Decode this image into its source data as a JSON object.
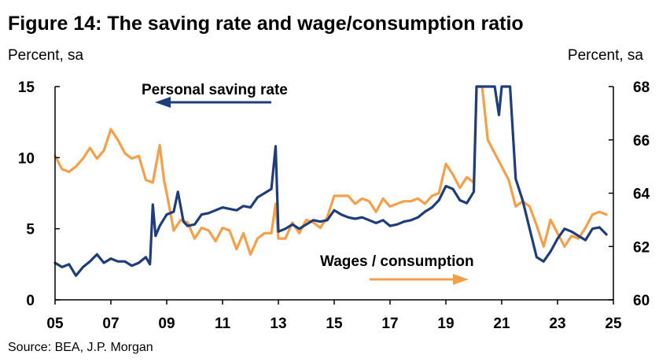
{
  "chart_data": {
    "type": "line",
    "title": "Figure 14: The saving rate and wage/consumption ratio",
    "left_unit": "Percent, sa",
    "right_unit": "Percent, sa",
    "source": "Source: BEA, J.P. Morgan",
    "x_range": [
      2005,
      2025
    ],
    "x_ticks": [
      "05",
      "07",
      "09",
      "11",
      "13",
      "15",
      "17",
      "19",
      "21",
      "23",
      "25"
    ],
    "x_tick_values": [
      2005,
      2007,
      2009,
      2011,
      2013,
      2015,
      2017,
      2019,
      2021,
      2023,
      2025
    ],
    "left_axis": {
      "range": [
        0,
        15
      ],
      "ticks": [
        "0",
        "5",
        "10",
        "15"
      ],
      "tick_values": [
        0,
        5,
        10,
        15
      ]
    },
    "right_axis": {
      "range": [
        60,
        68
      ],
      "ticks": [
        "60",
        "62",
        "64",
        "66",
        "68"
      ],
      "tick_values": [
        60,
        62,
        64,
        66,
        68
      ]
    },
    "annotations": {
      "saving": "Personal saving rate",
      "wages": "Wages / consumption"
    },
    "series": [
      {
        "name": "Personal saving rate",
        "axis": "left",
        "color": "#1f3d7a",
        "x": [
          2005.0,
          2005.25,
          2005.5,
          2005.75,
          2006.0,
          2006.25,
          2006.5,
          2006.75,
          2007.0,
          2007.25,
          2007.5,
          2007.75,
          2008.0,
          2008.25,
          2008.4,
          2008.5,
          2008.6,
          2008.75,
          2009.0,
          2009.25,
          2009.4,
          2009.6,
          2009.75,
          2010.0,
          2010.25,
          2010.5,
          2010.75,
          2011.0,
          2011.25,
          2011.5,
          2011.75,
          2012.0,
          2012.25,
          2012.5,
          2012.75,
          2012.9,
          2013.0,
          2013.25,
          2013.5,
          2013.75,
          2014.0,
          2014.25,
          2014.5,
          2014.75,
          2015.0,
          2015.25,
          2015.5,
          2015.75,
          2016.0,
          2016.25,
          2016.5,
          2016.75,
          2017.0,
          2017.25,
          2017.5,
          2017.75,
          2018.0,
          2018.25,
          2018.5,
          2018.75,
          2019.0,
          2019.25,
          2019.5,
          2019.75,
          2020.0,
          2020.1,
          2020.2,
          2020.3,
          2020.5,
          2020.75,
          2020.9,
          2021.0,
          2021.1,
          2021.2,
          2021.3,
          2021.5,
          2021.75,
          2022.0,
          2022.25,
          2022.5,
          2022.75,
          2023.0,
          2023.25,
          2023.5,
          2023.75,
          2024.0,
          2024.25,
          2024.5,
          2024.75
        ],
        "values": [
          2.6,
          2.3,
          2.5,
          1.7,
          2.3,
          2.7,
          3.2,
          2.6,
          2.9,
          2.7,
          2.7,
          2.4,
          2.6,
          3.0,
          2.5,
          6.7,
          4.5,
          5.2,
          6.0,
          6.2,
          7.6,
          5.5,
          5.2,
          5.3,
          6.0,
          6.1,
          6.3,
          6.5,
          6.4,
          6.3,
          6.6,
          6.5,
          7.2,
          7.5,
          7.8,
          10.8,
          4.8,
          5.0,
          5.3,
          5.0,
          5.3,
          5.6,
          5.5,
          5.6,
          6.3,
          6.0,
          5.8,
          5.7,
          5.8,
          5.6,
          5.4,
          5.6,
          5.2,
          5.3,
          5.5,
          5.6,
          5.8,
          6.2,
          6.5,
          7.0,
          8.0,
          7.8,
          7.0,
          6.8,
          7.6,
          15.0,
          15.0,
          15.0,
          15.0,
          15.0,
          13.0,
          15.0,
          15.0,
          15.0,
          15.0,
          8.5,
          7.0,
          5.0,
          3.0,
          2.7,
          3.4,
          4.3,
          5.0,
          4.8,
          4.5,
          4.2,
          5.0,
          5.1,
          4.6
        ]
      },
      {
        "name": "Wages / consumption",
        "axis": "right",
        "color": "#f4a04a",
        "x": [
          2005.0,
          2005.25,
          2005.5,
          2005.75,
          2006.0,
          2006.25,
          2006.5,
          2006.75,
          2007.0,
          2007.25,
          2007.5,
          2007.75,
          2008.0,
          2008.25,
          2008.5,
          2008.75,
          2008.9,
          2009.0,
          2009.25,
          2009.5,
          2009.75,
          2010.0,
          2010.25,
          2010.5,
          2010.75,
          2011.0,
          2011.25,
          2011.5,
          2011.75,
          2012.0,
          2012.25,
          2012.5,
          2012.75,
          2012.9,
          2013.0,
          2013.25,
          2013.5,
          2013.75,
          2014.0,
          2014.25,
          2014.5,
          2014.75,
          2015.0,
          2015.25,
          2015.5,
          2015.75,
          2016.0,
          2016.25,
          2016.5,
          2016.75,
          2017.0,
          2017.25,
          2017.5,
          2017.75,
          2018.0,
          2018.25,
          2018.5,
          2018.75,
          2019.0,
          2019.25,
          2019.5,
          2019.75,
          2020.0,
          2020.1,
          2020.2,
          2020.3,
          2020.5,
          2020.75,
          2021.0,
          2021.25,
          2021.5,
          2021.75,
          2022.0,
          2022.25,
          2022.5,
          2022.75,
          2023.0,
          2023.25,
          2023.5,
          2023.75,
          2024.0,
          2024.25,
          2024.5,
          2024.75
        ],
        "values": [
          65.4,
          64.9,
          64.8,
          65.0,
          65.3,
          65.7,
          65.3,
          65.6,
          66.4,
          66.0,
          65.5,
          65.3,
          65.4,
          64.5,
          64.4,
          65.8,
          64.5,
          64.0,
          62.6,
          63.0,
          62.9,
          62.3,
          62.7,
          62.6,
          62.2,
          62.7,
          62.6,
          61.9,
          62.5,
          61.7,
          62.3,
          62.5,
          62.5,
          63.6,
          62.3,
          62.3,
          62.9,
          62.5,
          63.0,
          62.9,
          62.7,
          63.1,
          63.9,
          63.9,
          63.9,
          63.6,
          63.8,
          63.7,
          63.3,
          63.8,
          63.5,
          63.6,
          63.7,
          63.7,
          63.8,
          63.6,
          63.9,
          64.0,
          65.1,
          64.7,
          64.2,
          64.6,
          64.4,
          68.0,
          68.0,
          68.0,
          66.0,
          65.5,
          65.0,
          64.5,
          63.5,
          63.7,
          63.5,
          62.8,
          62.0,
          63.0,
          62.5,
          62.0,
          62.4,
          62.3,
          62.7,
          63.2,
          63.3,
          63.2
        ]
      }
    ]
  }
}
